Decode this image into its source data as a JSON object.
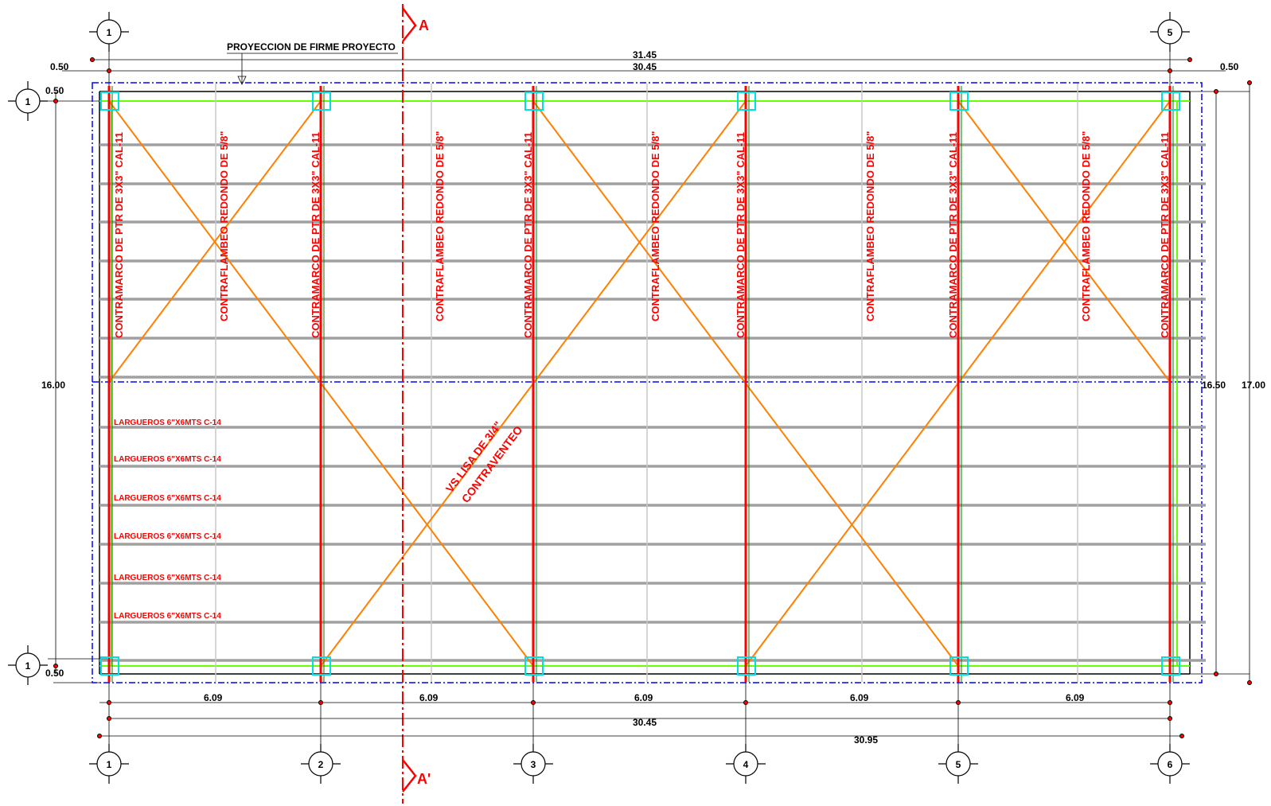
{
  "top_note": "PROYECCION DE FIRME PROYECTO",
  "section": {
    "top": "A",
    "bottom": "A'"
  },
  "axes_bottom": [
    "1",
    "2",
    "3",
    "4",
    "5",
    "6"
  ],
  "axes_top": [
    "1",
    "5"
  ],
  "axes_left": [
    "1",
    "1"
  ],
  "dims": {
    "total_top": "31.45",
    "frame_top": "30.45",
    "margin": "0.50",
    "left_height": "16.00",
    "right_inner": "16.50",
    "right_outer": "17.00",
    "bay": "6.09",
    "frame_bottom": "30.45",
    "total_bottom": "30.95"
  },
  "labels": {
    "contramarco": "CONTRAMARCO DE PTR DE 3X3\" CAL-11",
    "contraflambeo": "CONTRAFLAMBEO REDONDO DE 5/8\"",
    "largueros": "LARGUEROS 6\"X6MTS C-14",
    "bracing_1": "VS LISA DE 3/4\"",
    "bracing_2": "CONTRAVENTEO"
  },
  "colors": {
    "frame": "#ff0000",
    "bracing": "#ff8000",
    "purlin": "#a0a0a0",
    "outline": "#0000ff",
    "green_line": "#66ff00",
    "column": "#00e0e0"
  }
}
